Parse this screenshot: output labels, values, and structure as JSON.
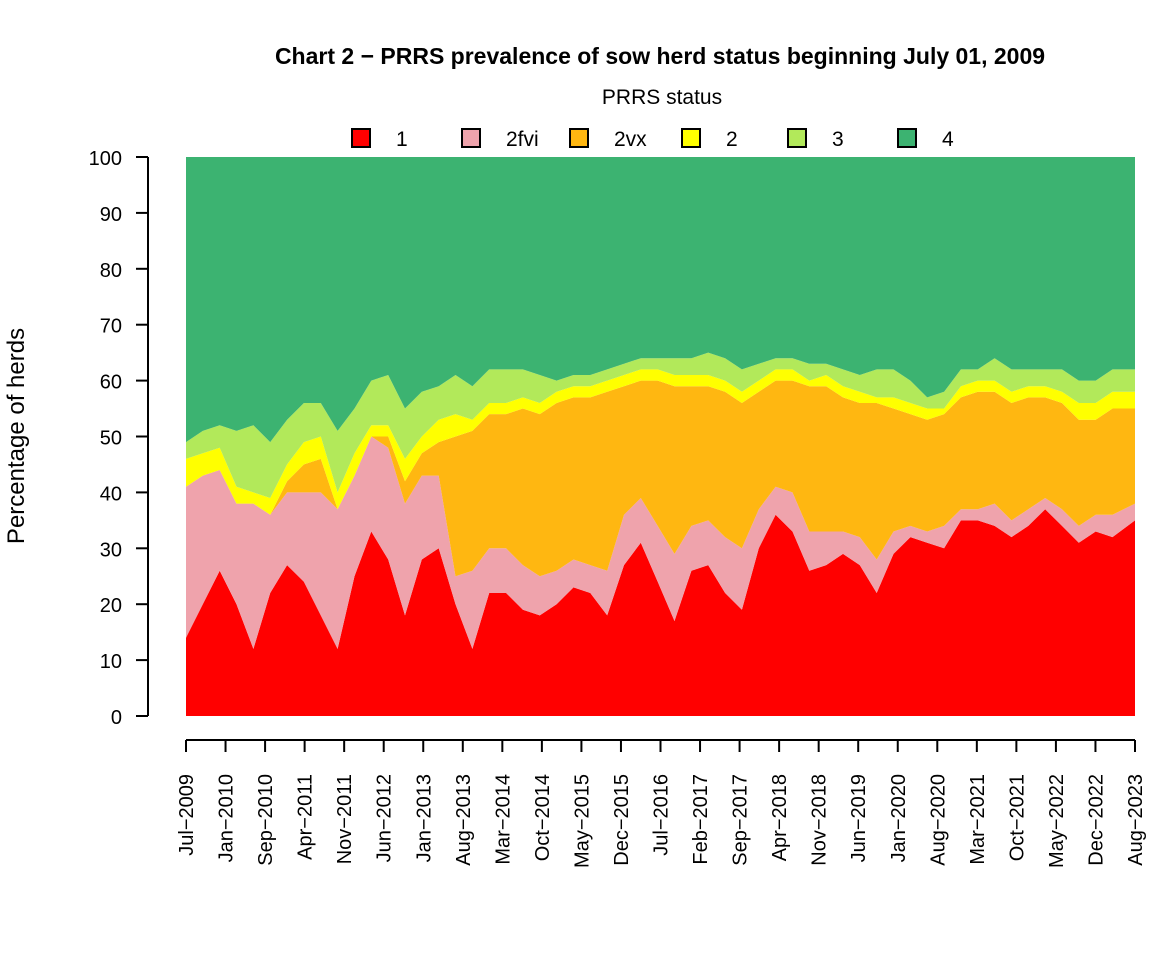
{
  "chart_data": {
    "type": "area",
    "stacked": true,
    "title": "Chart 2 − PRRS prevalence of sow herd status beginning July 01, 2009",
    "legend_title": "PRRS status",
    "legend_position": "top",
    "xlabel": "",
    "ylabel": "Percentage of herds",
    "ylim": [
      0,
      100
    ],
    "yticks": [
      0,
      10,
      20,
      30,
      40,
      50,
      60,
      70,
      80,
      90,
      100
    ],
    "grid": false,
    "x_tick_labels": [
      "Jul−2009",
      "Jan−2010",
      "Sep−2010",
      "Apr−2011",
      "Nov−2011",
      "Jun−2012",
      "Jan−2013",
      "Aug−2013",
      "Mar−2014",
      "Oct−2014",
      "May−2015",
      "Dec−2015",
      "Jul−2016",
      "Feb−2017",
      "Sep−2017",
      "Apr−2018",
      "Nov−2018",
      "Jun−2019",
      "Jan−2020",
      "Aug−2020",
      "Mar−2021",
      "Oct−2021",
      "May−2022",
      "Dec−2022",
      "Aug−2023"
    ],
    "x": [
      "2009-07",
      "2009-10",
      "2010-01",
      "2010-04",
      "2010-07",
      "2010-10",
      "2011-01",
      "2011-04",
      "2011-07",
      "2011-10",
      "2012-01",
      "2012-04",
      "2012-07",
      "2012-10",
      "2013-01",
      "2013-04",
      "2013-07",
      "2013-10",
      "2014-01",
      "2014-04",
      "2014-07",
      "2014-10",
      "2015-01",
      "2015-04",
      "2015-07",
      "2015-10",
      "2016-01",
      "2016-04",
      "2016-07",
      "2016-10",
      "2017-01",
      "2017-04",
      "2017-07",
      "2017-10",
      "2018-01",
      "2018-04",
      "2018-07",
      "2018-10",
      "2019-01",
      "2019-04",
      "2019-07",
      "2019-10",
      "2020-01",
      "2020-04",
      "2020-07",
      "2020-10",
      "2021-01",
      "2021-04",
      "2021-07",
      "2021-10",
      "2022-01",
      "2022-04",
      "2022-07",
      "2022-10",
      "2023-01",
      "2023-04",
      "2023-08"
    ],
    "series": [
      {
        "name": "1",
        "color": "#FF0000",
        "values": [
          14,
          20,
          26,
          20,
          12,
          22,
          27,
          24,
          18,
          12,
          25,
          33,
          28,
          18,
          28,
          30,
          20,
          12,
          22,
          22,
          19,
          18,
          20,
          23,
          22,
          18,
          27,
          31,
          24,
          17,
          26,
          27,
          22,
          19,
          30,
          36,
          33,
          26,
          27,
          29,
          27,
          22,
          29,
          32,
          31,
          30,
          35,
          35,
          34,
          32,
          34,
          37,
          34,
          31,
          33,
          32,
          35
        ]
      },
      {
        "name": "2fvi",
        "color": "#EFA3AC",
        "values": [
          27,
          23,
          18,
          18,
          26,
          14,
          13,
          16,
          22,
          25,
          18,
          17,
          20,
          20,
          15,
          13,
          5,
          14,
          8,
          8,
          8,
          7,
          6,
          5,
          5,
          8,
          9,
          8,
          10,
          12,
          8,
          8,
          10,
          11,
          7,
          5,
          7,
          7,
          6,
          4,
          5,
          6,
          4,
          2,
          2,
          4,
          2,
          2,
          4,
          3,
          3,
          2,
          3,
          3,
          3,
          4,
          3
        ]
      },
      {
        "name": "2vx",
        "color": "#FFB711",
        "values": [
          0,
          0,
          0,
          0,
          0,
          0,
          2,
          5,
          6,
          0,
          0,
          0,
          2,
          4,
          4,
          6,
          25,
          25,
          24,
          24,
          28,
          29,
          30,
          29,
          30,
          32,
          23,
          21,
          26,
          30,
          25,
          24,
          26,
          26,
          21,
          19,
          20,
          26,
          26,
          24,
          24,
          28,
          22,
          20,
          20,
          20,
          20,
          21,
          20,
          21,
          20,
          18,
          19,
          19,
          17,
          19,
          17
        ]
      },
      {
        "name": "2",
        "color": "#FFFF00",
        "values": [
          5,
          4,
          4,
          3,
          2,
          3,
          3,
          4,
          4,
          3,
          4,
          2,
          2,
          4,
          3,
          4,
          4,
          2,
          2,
          2,
          2,
          2,
          2,
          2,
          2,
          2,
          2,
          2,
          2,
          2,
          2,
          2,
          2,
          2,
          2,
          2,
          2,
          1,
          2,
          2,
          2,
          1,
          2,
          2,
          2,
          1,
          2,
          2,
          2,
          2,
          2,
          2,
          2,
          3,
          3,
          3,
          3
        ]
      },
      {
        "name": "3",
        "color": "#B2E95A",
        "values": [
          3,
          4,
          4,
          10,
          12,
          10,
          8,
          7,
          6,
          11,
          8,
          8,
          9,
          9,
          8,
          6,
          7,
          6,
          6,
          6,
          5,
          5,
          2,
          2,
          2,
          2,
          2,
          2,
          2,
          3,
          3,
          4,
          4,
          4,
          3,
          2,
          2,
          3,
          2,
          3,
          3,
          5,
          5,
          4,
          2,
          3,
          3,
          2,
          4,
          4,
          3,
          3,
          4,
          4,
          4,
          4,
          4
        ]
      },
      {
        "name": "4",
        "color": "#3CB371",
        "values": [
          51,
          49,
          48,
          49,
          48,
          51,
          47,
          44,
          44,
          49,
          45,
          40,
          39,
          45,
          42,
          41,
          39,
          41,
          38,
          38,
          38,
          39,
          40,
          39,
          39,
          38,
          37,
          36,
          36,
          36,
          36,
          35,
          36,
          38,
          37,
          36,
          36,
          37,
          37,
          38,
          39,
          38,
          38,
          40,
          43,
          42,
          38,
          38,
          36,
          38,
          38,
          38,
          38,
          40,
          40,
          38,
          38
        ]
      }
    ]
  }
}
